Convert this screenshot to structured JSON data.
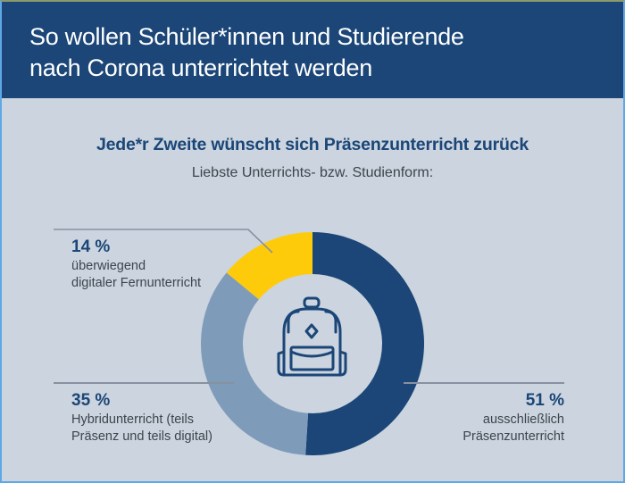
{
  "header": {
    "title_line1": "So wollen Schüler*innen und Studierende",
    "title_line2": "nach Corona unterrichtet werden"
  },
  "colors": {
    "header_bg": "#1b4677",
    "panel_bg": "#cbd4df",
    "dark_blue": "#1b4677",
    "light_blue": "#7f9bba",
    "yellow": "#fecb0a",
    "leader_line": "#8791a0"
  },
  "icon": {
    "center_icon": "backpack-icon"
  },
  "chart_data": {
    "type": "pie",
    "variant": "donut",
    "title": "Jede*r Zweite wünscht sich Präsenzunterricht zurück",
    "subtitle": "Liebste Unterrichts- bzw. Studienform:",
    "unit": "%",
    "start": "top",
    "direction": "clockwise",
    "slices": [
      {
        "key": "praesenz",
        "value": 51,
        "label": "51 %",
        "description_line1": "ausschließlich",
        "description_line2": "Präsenzunterricht",
        "color": "#1b4677"
      },
      {
        "key": "hybrid",
        "value": 35,
        "label": "35 %",
        "description_line1": "Hybridunterricht (teils",
        "description_line2": "Präsenz und teils digital)",
        "color": "#7f9bba"
      },
      {
        "key": "digital",
        "value": 14,
        "label": "14 %",
        "description_line1": "überwiegend",
        "description_line2": "digitaler Fernunterricht",
        "color": "#fecb0a"
      }
    ]
  }
}
